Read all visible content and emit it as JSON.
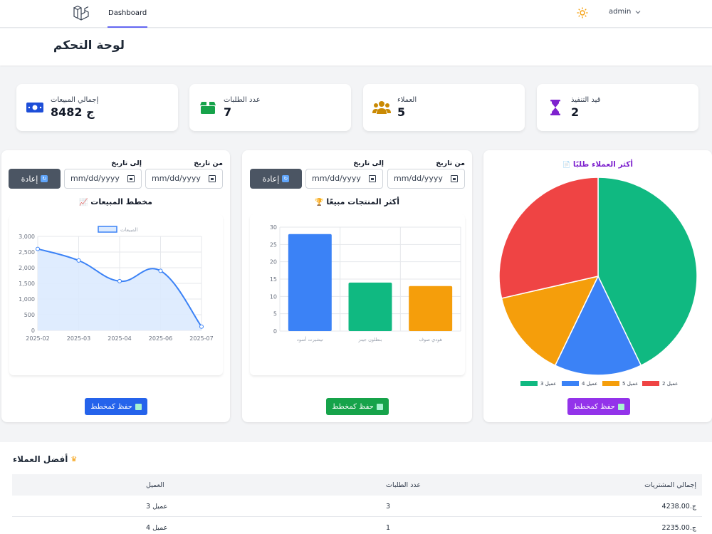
{
  "nav": {
    "dashboard_label": "Dashboard",
    "user_label": "admin"
  },
  "header": {
    "title": "لوحة التحكم"
  },
  "stats": [
    {
      "label": "إجمالي المبيعات",
      "value": "ج 8482",
      "icon": "money-icon",
      "color": "#1d4ed8"
    },
    {
      "label": "عدد الطلبات",
      "value": "7",
      "icon": "box-icon",
      "color": "#16a34a"
    },
    {
      "label": "العملاء",
      "value": "5",
      "icon": "users-icon",
      "color": "#ca8a04"
    },
    {
      "label": "قيد التنفيذ",
      "value": "2",
      "icon": "hourglass-icon",
      "color": "#7e22ce"
    }
  ],
  "filters": {
    "from_label": "من تاريخ",
    "to_label": "إلى تاريخ",
    "date_placeholder": "mm/dd/yyyy",
    "reset_label": "إعادة"
  },
  "sales_panel": {
    "title": "مخطط المبيعات",
    "save_label": "حفظ كمخطط",
    "save_color": "#2563eb"
  },
  "products_panel": {
    "title": "أكثر المنتجات مبيعًا",
    "save_label": "حفظ كمخطط",
    "save_color": "#16a34a"
  },
  "customers_panel": {
    "title": "أكثر العملاء طلبًا",
    "save_label": "حفظ كمخطط",
    "save_color": "#9333ea"
  },
  "chart_data": [
    {
      "type": "area",
      "legend": [
        "المبيعات"
      ],
      "categories": [
        "2025-02",
        "2025-03",
        "2025-04",
        "2025-06",
        "2025-07"
      ],
      "series": [
        {
          "name": "المبيعات",
          "values": [
            2600,
            2230,
            1570,
            1900,
            120
          ]
        }
      ],
      "ylim": [
        0,
        3000
      ],
      "yticks": [
        "0",
        "500",
        "1,000",
        "1,500",
        "2,000",
        "2,500",
        "3,000"
      ],
      "color": "#3b82f6"
    },
    {
      "type": "bar",
      "categories": [
        "تيشيرت أسود",
        "بنطلون جينز",
        "هودي صوف"
      ],
      "values": [
        28,
        14,
        13
      ],
      "colors": [
        "#3b82f6",
        "#10b981",
        "#f59e0b"
      ],
      "ylim": [
        0,
        30
      ],
      "yticks": [
        "0",
        "5",
        "10",
        "15",
        "20",
        "25",
        "30"
      ]
    },
    {
      "type": "pie",
      "labels": [
        "عميل 3",
        "عميل 4",
        "عميل 5",
        "عميل 2"
      ],
      "values": [
        3,
        1,
        1,
        2
      ],
      "colors": [
        "#10b981",
        "#3b82f6",
        "#f59e0b",
        "#ef4444"
      ]
    }
  ],
  "best_customers": {
    "title": "أفضل العملاء",
    "headers": {
      "total": "إجمالي المشتريات",
      "orders": "عدد الطلبات",
      "customer": "العميل"
    },
    "rows": [
      {
        "total": "ج.4238.00",
        "orders": "3",
        "customer": "عميل 3"
      },
      {
        "total": "ج.2235.00",
        "orders": "1",
        "customer": "عميل 4"
      }
    ]
  }
}
